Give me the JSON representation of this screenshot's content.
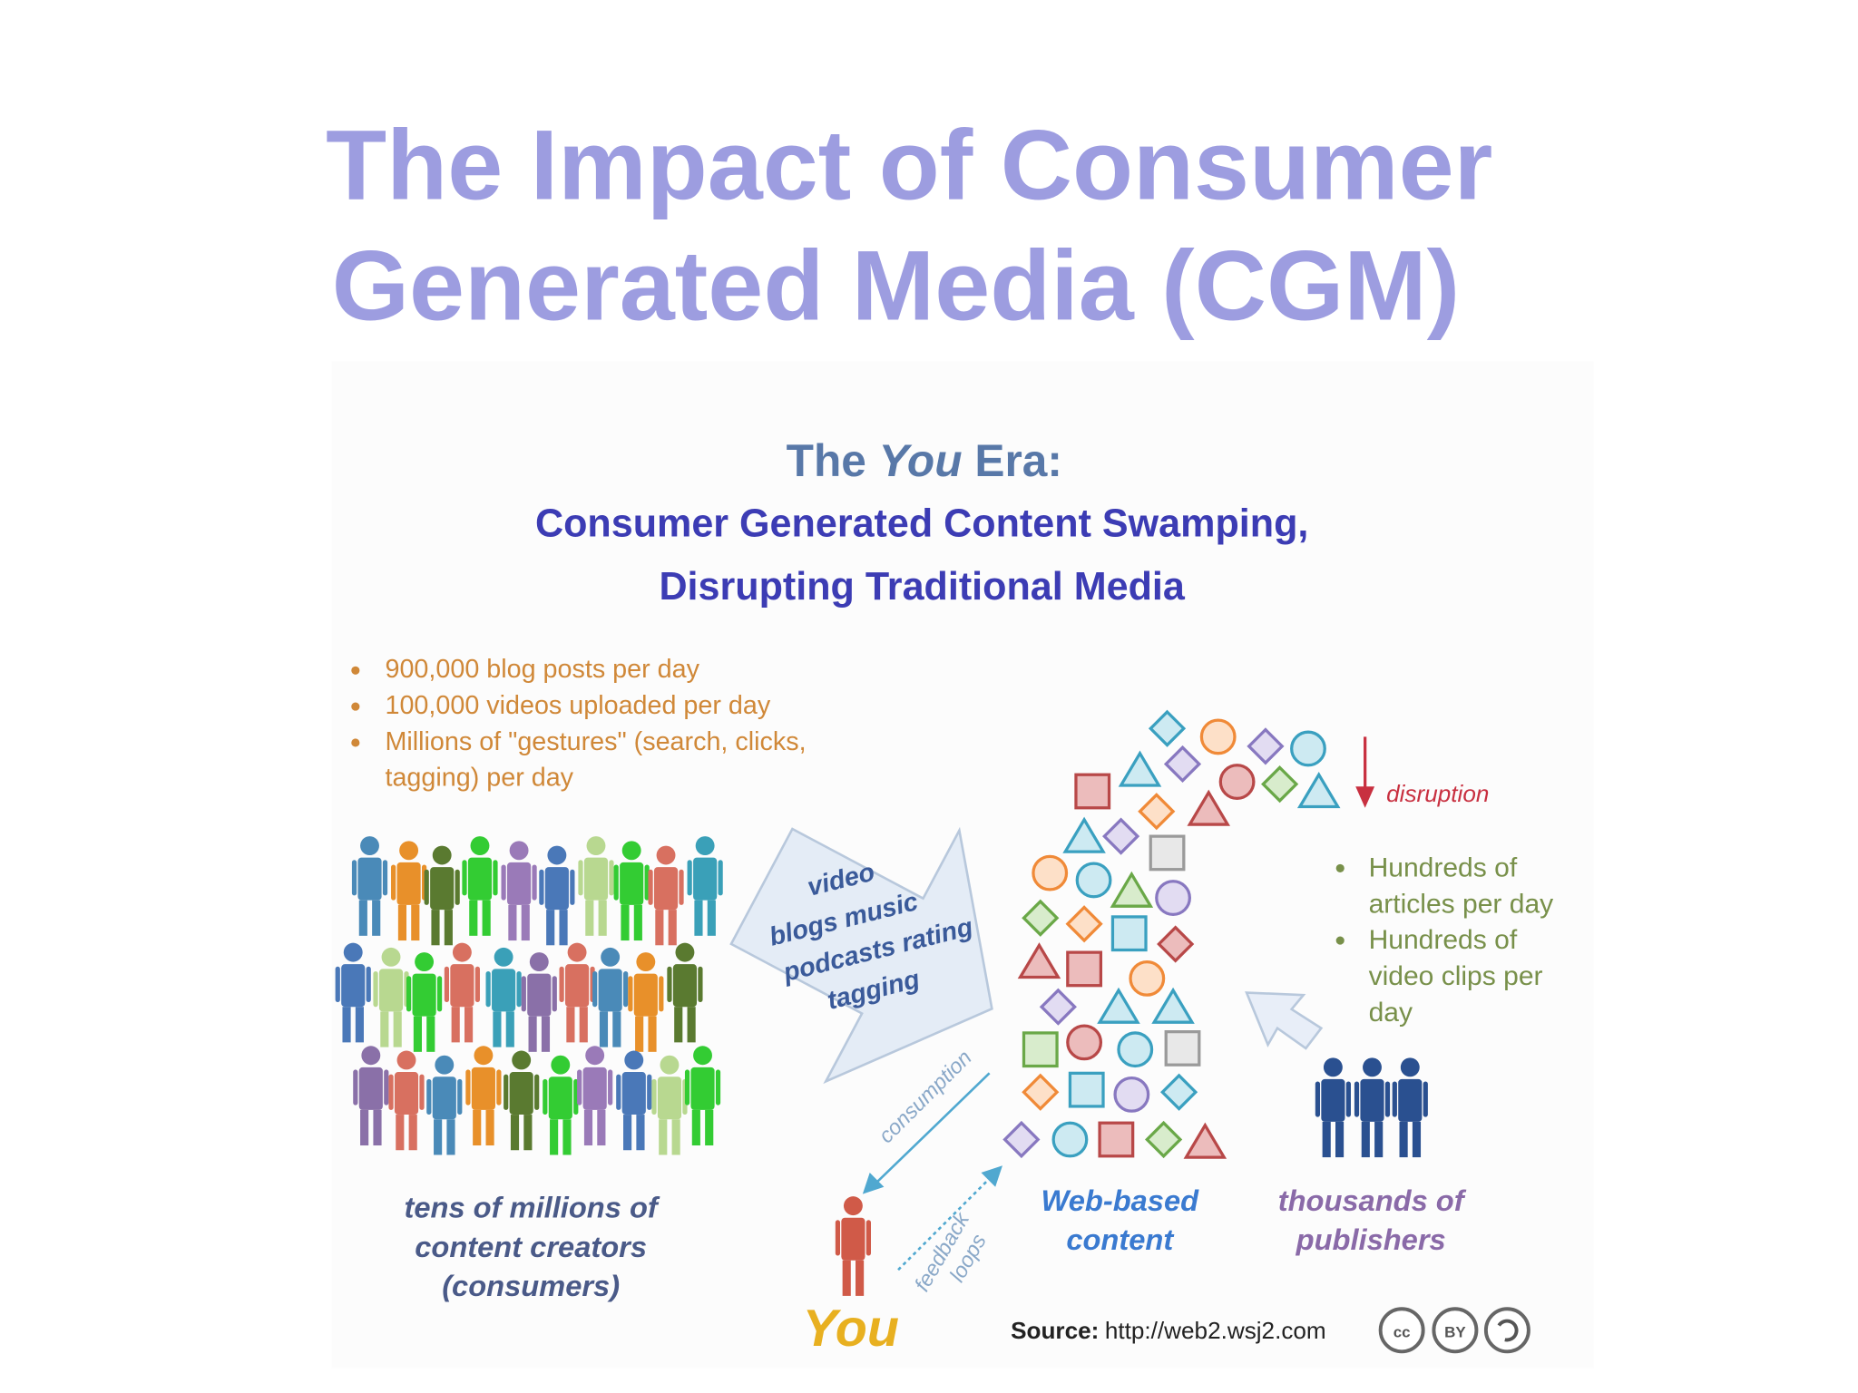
{
  "title_lines": [
    "The Impact of Consumer",
    "Generated Media (CGM)"
  ],
  "infographic": {
    "heading": {
      "before": "The ",
      "emphasis": "You",
      "after": " Era:"
    },
    "subtitle_lines": [
      "Consumer Generated Content Swamping,",
      "Disrupting Traditional Media"
    ],
    "stats": [
      [
        "900,000 blog posts per day"
      ],
      [
        "100,000 videos uploaded per day"
      ],
      [
        "Millions of \"gestures\" (search, clicks,",
        "tagging) per day"
      ]
    ],
    "arrow_words": [
      "video",
      "blogs  music",
      "podcasts  rating",
      "tagging"
    ],
    "disruption": "disruption",
    "publisher_stats": [
      [
        "Hundreds of",
        "articles per day"
      ],
      [
        "Hundreds of",
        "video clips per",
        "day"
      ]
    ],
    "consumption": "consumption",
    "feedback_lines": [
      "feedback",
      "loops"
    ],
    "creators_caption": [
      "tens of millions of",
      "content creators",
      "(consumers)"
    ],
    "content_caption": [
      "Web-based",
      "content"
    ],
    "publishers_caption": [
      "thousands of",
      "publishers"
    ],
    "you": "You",
    "source": {
      "label": "Source:",
      "url": "http://web2.wsj2.com"
    },
    "license_icons": [
      "cc",
      "BY"
    ]
  }
}
